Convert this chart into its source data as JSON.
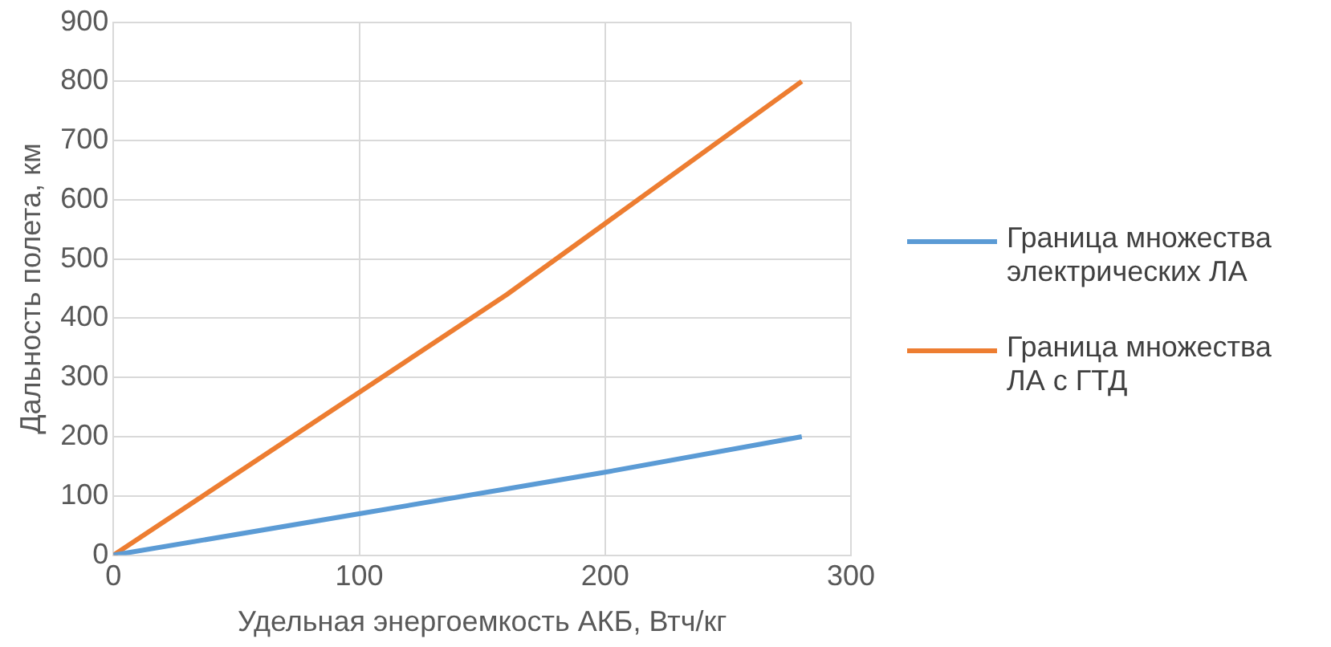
{
  "chart_data": {
    "type": "line",
    "xlabel": "Удельная энергоемкость АКБ, Втч/кг",
    "ylabel": "Дальность полета, км",
    "xlim": [
      0,
      300
    ],
    "xticks": [
      0,
      100,
      200,
      300
    ],
    "ylim": [
      0,
      900
    ],
    "yticks": [
      0,
      100,
      200,
      300,
      400,
      500,
      600,
      700,
      800,
      900
    ],
    "grid": true,
    "legend": "right",
    "marker": "none",
    "line_style": "solid",
    "series": [
      {
        "name": "Граница множества электрических ЛА",
        "color": "#5b9bd5",
        "x": [
          0,
          100,
          160,
          200,
          280
        ],
        "values": [
          0,
          70,
          112,
          140,
          200
        ]
      },
      {
        "name": "Граница множества ЛА с ГТД",
        "color": "#ed7d31",
        "x": [
          0,
          100,
          160,
          200,
          280
        ],
        "values": [
          0,
          275,
          440,
          560,
          800
        ]
      }
    ]
  }
}
